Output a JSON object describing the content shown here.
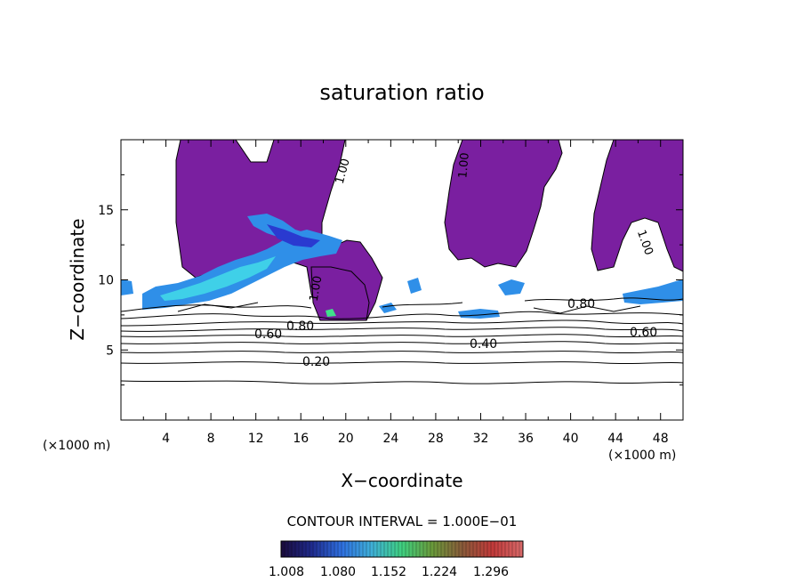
{
  "chart_data": {
    "type": "heatmap",
    "title": "saturation ratio",
    "xlabel": "X−coordinate",
    "ylabel": "Z−coordinate",
    "x_unit_left": "(×1000 m)",
    "x_unit_right": "(×1000 m)",
    "xlim": [
      0,
      50
    ],
    "ylim": [
      0,
      20
    ],
    "x_ticks": [
      "4",
      "8",
      "12",
      "16",
      "20",
      "24",
      "28",
      "32",
      "36",
      "40",
      "44",
      "48"
    ],
    "y_ticks": [
      "5",
      "10",
      "15"
    ],
    "contour_interval_label": "CONTOUR INTERVAL = 1.000E−01",
    "contour_labels": [
      {
        "text": "1.00",
        "x": 18.8,
        "y": 17.8
      },
      {
        "text": "1.00",
        "x": 30.0,
        "y": 18.5
      },
      {
        "text": "1.00",
        "x": 46.0,
        "y": 12.5
      },
      {
        "text": "1.00",
        "x": 16.8,
        "y": 9.3
      },
      {
        "text": "0.80",
        "x": 16.4,
        "y": 6.8
      },
      {
        "text": "0.80",
        "x": 41.0,
        "y": 8.2
      },
      {
        "text": "0.60",
        "x": 13.5,
        "y": 6.2
      },
      {
        "text": "0.60",
        "x": 46.5,
        "y": 6.3
      },
      {
        "text": "0.40",
        "x": 32.5,
        "y": 5.4
      },
      {
        "text": "0.20",
        "x": 17.6,
        "y": 4.2
      }
    ],
    "colorbar": {
      "ticks": [
        "1.008",
        "1.080",
        "1.152",
        "1.224",
        "1.296"
      ],
      "colors": [
        "#1a0a3a",
        "#1f2a8c",
        "#2f6fe0",
        "#3fb0d8",
        "#3fd080",
        "#6a9a3a",
        "#8a5a3a",
        "#c23a3a",
        "#d86a6a"
      ]
    },
    "fill_colors": {
      "supersat_low": "#7a1fa0",
      "blue": "#2f8fe8",
      "cyan": "#3fd0e8",
      "deep_blue": "#2a3ad0",
      "green": "#3fe08a"
    }
  }
}
